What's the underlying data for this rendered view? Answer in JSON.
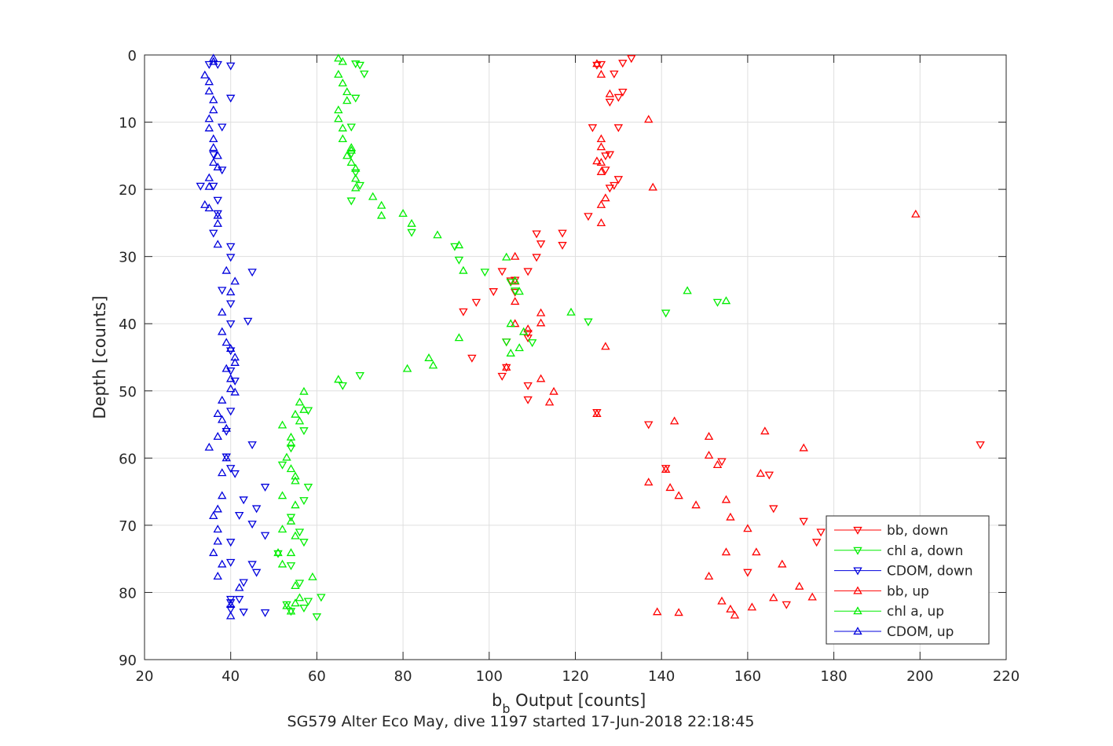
{
  "chart_data": {
    "type": "scatter",
    "xlabel": "b_b Output [counts]",
    "xlabel_main": "b",
    "xlabel_sub": "b",
    "xlabel_rest": " Output [counts]",
    "ylabel": "Depth [counts]",
    "caption": "SG579 Alter Eco May, dive 1197 started 17-Jun-2018 22:18:45",
    "xlim": [
      20,
      220
    ],
    "ylim": [
      0,
      90
    ],
    "y_reversed": true,
    "grid": true,
    "legend_position": "bottom-right",
    "xticks": [
      20,
      40,
      60,
      80,
      100,
      120,
      140,
      160,
      180,
      200,
      220
    ],
    "yticks": [
      0,
      10,
      20,
      30,
      40,
      50,
      60,
      70,
      80,
      90
    ],
    "series": [
      {
        "name": "bb, down",
        "color": "#ff0000",
        "marker": "triangle-down",
        "points": [
          [
            133,
            0.5
          ],
          [
            131,
            1.2
          ],
          [
            126,
            1.4
          ],
          [
            125,
            1.5
          ],
          [
            129,
            2.8
          ],
          [
            131,
            5.5
          ],
          [
            130,
            6.3
          ],
          [
            128,
            7
          ],
          [
            124,
            10.8
          ],
          [
            130,
            10.8
          ],
          [
            128,
            14.8
          ],
          [
            127,
            15
          ],
          [
            127,
            17.1
          ],
          [
            130,
            18.5
          ],
          [
            129,
            19.4
          ],
          [
            128,
            19.8
          ],
          [
            123,
            24
          ],
          [
            117,
            26.5
          ],
          [
            111,
            26.6
          ],
          [
            112,
            28.1
          ],
          [
            117,
            28.3
          ],
          [
            111,
            30.1
          ],
          [
            103,
            32.2
          ],
          [
            109,
            32.2
          ],
          [
            105,
            33.6
          ],
          [
            106,
            33.5
          ],
          [
            101,
            35.2
          ],
          [
            106,
            35.3
          ],
          [
            97,
            36.8
          ],
          [
            94,
            38.2
          ],
          [
            104,
            42.7
          ],
          [
            109,
            41.4
          ],
          [
            109,
            42.1
          ],
          [
            96,
            45.1
          ],
          [
            104,
            46.5
          ],
          [
            103,
            47.8
          ],
          [
            109,
            49.2
          ],
          [
            109,
            51.3
          ],
          [
            125,
            53.2
          ],
          [
            214,
            58
          ],
          [
            154,
            60.5
          ],
          [
            165,
            62.5
          ],
          [
            166,
            67.5
          ],
          [
            173,
            69.4
          ],
          [
            177,
            71
          ],
          [
            176,
            72.5
          ],
          [
            169,
            81.8
          ],
          [
            137,
            55
          ],
          [
            141,
            61.5
          ],
          [
            160,
            77
          ]
        ]
      },
      {
        "name": "chl a, down",
        "color": "#00ee00",
        "marker": "triangle-down",
        "points": [
          [
            69,
            1.3
          ],
          [
            70,
            1.5
          ],
          [
            71,
            2.8
          ],
          [
            69,
            6.4
          ],
          [
            68,
            10.7
          ],
          [
            68,
            14.7
          ],
          [
            69,
            17.5
          ],
          [
            70,
            19.4
          ],
          [
            68,
            21.7
          ],
          [
            82,
            26.4
          ],
          [
            92,
            28.5
          ],
          [
            93,
            30.5
          ],
          [
            99,
            32.3
          ],
          [
            105,
            33.8
          ],
          [
            106,
            35.1
          ],
          [
            104,
            42.7
          ],
          [
            70,
            47.7
          ],
          [
            66,
            49.2
          ],
          [
            153,
            36.8
          ],
          [
            141,
            38.4
          ],
          [
            123,
            39.7
          ],
          [
            110,
            42.8
          ],
          [
            58,
            52.9
          ],
          [
            57,
            55.9
          ],
          [
            54,
            58.5
          ],
          [
            58,
            64.3
          ],
          [
            57,
            66.3
          ],
          [
            54,
            68.8
          ],
          [
            56,
            71
          ],
          [
            57,
            72.5
          ],
          [
            54,
            76
          ],
          [
            56,
            78.6
          ],
          [
            58,
            81.3
          ],
          [
            61,
            80.7
          ],
          [
            53,
            81.8
          ],
          [
            57,
            82.3
          ],
          [
            54,
            82.8
          ],
          [
            60,
            83.6
          ],
          [
            52,
            61
          ],
          [
            51,
            74.2
          ]
        ]
      },
      {
        "name": "CDOM, down",
        "color": "#0000dd",
        "marker": "triangle-down",
        "points": [
          [
            35,
            1.4
          ],
          [
            37,
            1.4
          ],
          [
            40,
            1.6
          ],
          [
            40,
            6.4
          ],
          [
            38,
            10.7
          ],
          [
            38,
            17.1
          ],
          [
            36,
            14.8
          ],
          [
            33,
            19.5
          ],
          [
            36,
            19.5
          ],
          [
            37,
            21.6
          ],
          [
            36,
            26.5
          ],
          [
            40,
            28.5
          ],
          [
            40,
            30.1
          ],
          [
            45,
            32.3
          ],
          [
            38,
            35
          ],
          [
            40,
            37
          ],
          [
            40,
            40
          ],
          [
            40,
            44
          ],
          [
            40,
            47
          ],
          [
            41,
            48.5
          ],
          [
            40,
            53
          ],
          [
            39,
            56
          ],
          [
            45,
            58
          ],
          [
            39,
            59.8
          ],
          [
            41,
            62.3
          ],
          [
            48,
            64.3
          ],
          [
            43,
            66.2
          ],
          [
            42,
            68.5
          ],
          [
            46,
            67.5
          ],
          [
            45,
            69.8
          ],
          [
            48,
            71.5
          ],
          [
            40,
            72.5
          ],
          [
            40,
            75.5
          ],
          [
            43,
            78.5
          ],
          [
            40,
            81
          ],
          [
            42,
            81
          ],
          [
            40,
            81.5
          ],
          [
            40,
            82.5
          ],
          [
            43,
            82.9
          ],
          [
            48,
            83
          ],
          [
            45,
            75.8
          ],
          [
            46,
            77
          ],
          [
            40,
            61.5
          ],
          [
            44,
            39.6
          ],
          [
            37,
            23.6
          ]
        ]
      },
      {
        "name": "bb, up",
        "color": "#ff0000",
        "marker": "triangle-up",
        "points": [
          [
            125,
            1.3
          ],
          [
            126,
            2.9
          ],
          [
            128,
            5.8
          ],
          [
            137,
            9.6
          ],
          [
            126,
            12.5
          ],
          [
            126,
            13.7
          ],
          [
            126,
            16
          ],
          [
            126,
            17.4
          ],
          [
            125,
            15.8
          ],
          [
            138,
            19.7
          ],
          [
            127,
            21.3
          ],
          [
            126,
            22.3
          ],
          [
            126,
            25
          ],
          [
            199,
            23.7
          ],
          [
            106,
            30
          ],
          [
            106,
            33.7
          ],
          [
            106,
            36.7
          ],
          [
            112,
            38.4
          ],
          [
            112,
            39.9
          ],
          [
            106,
            40
          ],
          [
            109,
            40.8
          ],
          [
            112,
            48.2
          ],
          [
            115,
            50.1
          ],
          [
            114,
            51.7
          ],
          [
            127,
            43.4
          ],
          [
            104,
            46.5
          ],
          [
            125,
            53.4
          ],
          [
            143,
            54.5
          ],
          [
            164,
            56
          ],
          [
            151,
            56.8
          ],
          [
            173,
            58.5
          ],
          [
            151,
            59.6
          ],
          [
            153,
            61
          ],
          [
            163,
            62.3
          ],
          [
            141,
            61.7
          ],
          [
            137,
            63.6
          ],
          [
            142,
            64.4
          ],
          [
            144,
            65.6
          ],
          [
            155,
            66.2
          ],
          [
            148,
            67
          ],
          [
            156,
            68.8
          ],
          [
            160,
            70.5
          ],
          [
            155,
            74
          ],
          [
            162,
            74
          ],
          [
            168,
            75.8
          ],
          [
            151,
            77.6
          ],
          [
            172,
            79.1
          ],
          [
            175,
            80.7
          ],
          [
            166,
            80.8
          ],
          [
            154,
            81.3
          ],
          [
            156,
            82.5
          ],
          [
            157,
            83.4
          ],
          [
            161,
            82.2
          ],
          [
            139,
            82.9
          ],
          [
            144,
            83
          ]
        ]
      },
      {
        "name": "chl a, up",
        "color": "#00ee00",
        "marker": "triangle-up",
        "points": [
          [
            65,
            0.5
          ],
          [
            66,
            1
          ],
          [
            65,
            2.9
          ],
          [
            66,
            4.2
          ],
          [
            67,
            5.5
          ],
          [
            67,
            6.8
          ],
          [
            65,
            8.2
          ],
          [
            65,
            9.5
          ],
          [
            66,
            10.9
          ],
          [
            66,
            12.5
          ],
          [
            68,
            13.8
          ],
          [
            68,
            14.2
          ],
          [
            67,
            15
          ],
          [
            68,
            16
          ],
          [
            69,
            16.9
          ],
          [
            69,
            18.4
          ],
          [
            69,
            19.8
          ],
          [
            73,
            21.1
          ],
          [
            75,
            22.4
          ],
          [
            75,
            23.9
          ],
          [
            80,
            23.6
          ],
          [
            82,
            25.1
          ],
          [
            88,
            26.8
          ],
          [
            93,
            28.3
          ],
          [
            104,
            30.1
          ],
          [
            94,
            32.1
          ],
          [
            106,
            33.6
          ],
          [
            107,
            35.2
          ],
          [
            146,
            35.1
          ],
          [
            155,
            36.6
          ],
          [
            119,
            38.3
          ],
          [
            105,
            40
          ],
          [
            108,
            41.2
          ],
          [
            93,
            42.1
          ],
          [
            107,
            43.6
          ],
          [
            105,
            44.4
          ],
          [
            86,
            45.1
          ],
          [
            87,
            46.2
          ],
          [
            81,
            46.7
          ],
          [
            65,
            48.3
          ],
          [
            57,
            50.1
          ],
          [
            56,
            51.7
          ],
          [
            57,
            52.8
          ],
          [
            55,
            53.5
          ],
          [
            56,
            54.5
          ],
          [
            52,
            55.1
          ],
          [
            54,
            56.9
          ],
          [
            53,
            59.9
          ],
          [
            54,
            57.8
          ],
          [
            54,
            61.6
          ],
          [
            55,
            62.7
          ],
          [
            55,
            63.4
          ],
          [
            52,
            65.6
          ],
          [
            55,
            67
          ],
          [
            54,
            69.4
          ],
          [
            52,
            70.6
          ],
          [
            55,
            71.6
          ],
          [
            51,
            74.1
          ],
          [
            54,
            74.1
          ],
          [
            52,
            75.8
          ],
          [
            59,
            77.7
          ],
          [
            55,
            79
          ],
          [
            56,
            80.8
          ],
          [
            55,
            81.6
          ],
          [
            53,
            82
          ],
          [
            54,
            82.8
          ]
        ]
      },
      {
        "name": "CDOM, up",
        "color": "#0000dd",
        "marker": "triangle-up",
        "points": [
          [
            36,
            0.5
          ],
          [
            36,
            1
          ],
          [
            34,
            3
          ],
          [
            35,
            4
          ],
          [
            35,
            5.4
          ],
          [
            36,
            6.7
          ],
          [
            36,
            8.2
          ],
          [
            35,
            9.5
          ],
          [
            35,
            10.9
          ],
          [
            36,
            12.5
          ],
          [
            36,
            13.8
          ],
          [
            37,
            15
          ],
          [
            36,
            16
          ],
          [
            37,
            16.7
          ],
          [
            35,
            18.3
          ],
          [
            35,
            19.6
          ],
          [
            34,
            22.3
          ],
          [
            35,
            22.8
          ],
          [
            37,
            23.9
          ],
          [
            37,
            25.1
          ],
          [
            37,
            28.2
          ],
          [
            39,
            32.1
          ],
          [
            41,
            33.7
          ],
          [
            40,
            35.3
          ],
          [
            38,
            38.3
          ],
          [
            38,
            41.2
          ],
          [
            39,
            42.8
          ],
          [
            40,
            43.7
          ],
          [
            41,
            45
          ],
          [
            41,
            45.8
          ],
          [
            39,
            46.7
          ],
          [
            40,
            48.2
          ],
          [
            40,
            49.7
          ],
          [
            41,
            50.2
          ],
          [
            38,
            51.4
          ],
          [
            37,
            53.4
          ],
          [
            38,
            54.3
          ],
          [
            39,
            55.6
          ],
          [
            37,
            56.8
          ],
          [
            35,
            58.4
          ],
          [
            39,
            60
          ],
          [
            38,
            62.2
          ],
          [
            38,
            65.6
          ],
          [
            37,
            67.6
          ],
          [
            36,
            68.6
          ],
          [
            37,
            70.6
          ],
          [
            37,
            72.4
          ],
          [
            36,
            74.1
          ],
          [
            38,
            75.8
          ],
          [
            37,
            77.6
          ],
          [
            42,
            79.3
          ],
          [
            40,
            81.8
          ],
          [
            40,
            83.5
          ]
        ]
      }
    ]
  }
}
